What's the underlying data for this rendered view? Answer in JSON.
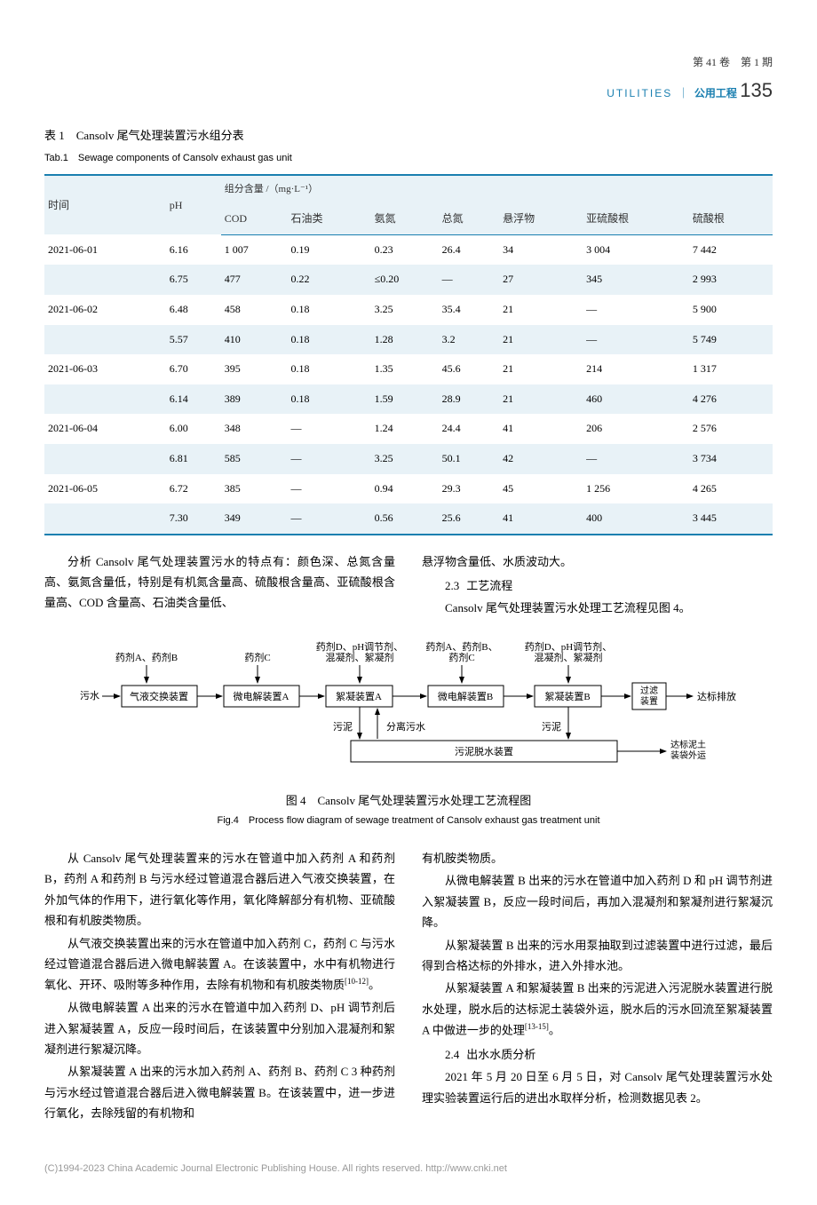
{
  "header": {
    "issue_text": "第 41 卷　第 1 期",
    "utilities": "UTILITIES",
    "cn_journal": "公用工程",
    "page_no": "135"
  },
  "table1": {
    "title_cn": "表 1　Cansolv 尾气处理装置污水组分表",
    "title_en": "Tab.1　Sewage components of Cansolv exhaust gas unit",
    "header_group": "组分含量 /（mg·L⁻¹）",
    "columns": [
      "时间",
      "pH",
      "COD",
      "石油类",
      "氨氮",
      "总氮",
      "悬浮物",
      "亚硫酸根",
      "硫酸根"
    ],
    "rows": [
      [
        "2021-06-01",
        "6.16",
        "1 007",
        "0.19",
        "0.23",
        "26.4",
        "34",
        "3 004",
        "7 442"
      ],
      [
        "",
        "6.75",
        "477",
        "0.22",
        "≤0.20",
        "—",
        "27",
        "345",
        "2 993"
      ],
      [
        "2021-06-02",
        "6.48",
        "458",
        "0.18",
        "3.25",
        "35.4",
        "21",
        "—",
        "5 900"
      ],
      [
        "",
        "5.57",
        "410",
        "0.18",
        "1.28",
        "3.2",
        "21",
        "—",
        "5 749"
      ],
      [
        "2021-06-03",
        "6.70",
        "395",
        "0.18",
        "1.35",
        "45.6",
        "21",
        "214",
        "1 317"
      ],
      [
        "",
        "6.14",
        "389",
        "0.18",
        "1.59",
        "28.9",
        "21",
        "460",
        "4 276"
      ],
      [
        "2021-06-04",
        "6.00",
        "348",
        "—",
        "1.24",
        "24.4",
        "41",
        "206",
        "2 576"
      ],
      [
        "",
        "6.81",
        "585",
        "—",
        "3.25",
        "50.1",
        "42",
        "—",
        "3 734"
      ],
      [
        "2021-06-05",
        "6.72",
        "385",
        "—",
        "0.94",
        "29.3",
        "45",
        "1 256",
        "4 265"
      ],
      [
        "",
        "7.30",
        "349",
        "—",
        "0.56",
        "25.6",
        "41",
        "400",
        "3 445"
      ]
    ],
    "header_bg": "#e8f2f7",
    "border_color": "#1a7fb0"
  },
  "intro_left": {
    "p1": "分析 Cansolv 尾气处理装置污水的特点有：颜色深、总氮含量高、氨氮含量低，特别是有机氮含量高、硫酸根含量高、亚硫酸根含量高、COD 含量高、石油类含量低、"
  },
  "intro_right": {
    "p1": "悬浮物含量低、水质波动大。",
    "sec_num": "2.3",
    "sec_title": "工艺流程",
    "p2": "Cansolv 尾气处理装置污水处理工艺流程见图 4。"
  },
  "diagram": {
    "labels": {
      "top1": "药剂A、药剂B",
      "top2": "药剂C",
      "top3": "药剂D、pH调节剂、\n混凝剂、絮凝剂",
      "top4": "药剂A、药剂B、\n药剂C",
      "top5": "药剂D、pH调节剂、\n混凝剂、絮凝剂",
      "in": "污水",
      "box1": "气液交换装置",
      "box2": "微电解装置A",
      "box3": "絮凝装置A",
      "box4": "微电解装置B",
      "box5": "絮凝装置B",
      "box6": "过滤\n装置",
      "out": "达标排放",
      "sludge": "污泥",
      "sepwater": "分离污水",
      "box7": "污泥脱水装置",
      "out2": "达标泥土\n装袋外运"
    },
    "title_cn": "图 4　Cansolv 尾气处理装置污水处理工艺流程图",
    "title_en": "Fig.4　Process flow diagram of sewage treatment of Cansolv exhaust gas treatment unit",
    "box_stroke": "#000",
    "arrow_color": "#000",
    "font_size": 11
  },
  "body_left": {
    "p1": "从 Cansolv 尾气处理装置来的污水在管道中加入药剂 A 和药剂 B，药剂 A 和药剂 B 与污水经过管道混合器后进入气液交换装置，在外加气体的作用下，进行氧化等作用，氧化降解部分有机物、亚硫酸根和有机胺类物质。",
    "p2": "从气液交换装置出来的污水在管道中加入药剂 C，药剂 C 与污水经过管道混合器后进入微电解装置 A。在该装置中，水中有机物进行氧化、开环、吸附等多种作用，去除有机物和有机胺类物质",
    "p2_ref": "[10-12]",
    "p2_end": "。",
    "p3": "从微电解装置 A 出来的污水在管道中加入药剂 D、pH 调节剂后进入絮凝装置 A，反应一段时间后，在该装置中分别加入混凝剂和絮凝剂进行絮凝沉降。",
    "p4": "从絮凝装置 A 出来的污水加入药剂 A、药剂 B、药剂 C 3 种药剂与污水经过管道混合器后进入微电解装置 B。在该装置中，进一步进行氧化，去除残留的有机物和"
  },
  "body_right": {
    "p1": "有机胺类物质。",
    "p2": "从微电解装置 B 出来的污水在管道中加入药剂 D 和 pH 调节剂进入絮凝装置 B，反应一段时间后，再加入混凝剂和絮凝剂进行絮凝沉降。",
    "p3": "从絮凝装置 B 出来的污水用泵抽取到过滤装置中进行过滤，最后得到合格达标的外排水，进入外排水池。",
    "p4": "从絮凝装置 A 和絮凝装置 B 出来的污泥进入污泥脱水装置进行脱水处理，脱水后的达标泥土装袋外运，脱水后的污水回流至絮凝装置 A 中做进一步的处理",
    "p4_ref": "[13-15]",
    "p4_end": "。",
    "sec_num": "2.4",
    "sec_title": "出水水质分析",
    "p5": "2021 年 5 月 20 日至 6 月 5 日，对 Cansolv 尾气处理装置污水处理实验装置运行后的进出水取样分析，检测数据见表 2。"
  },
  "footer": "(C)1994-2023 China Academic Journal Electronic Publishing House. All rights reserved.    http://www.cnki.net"
}
